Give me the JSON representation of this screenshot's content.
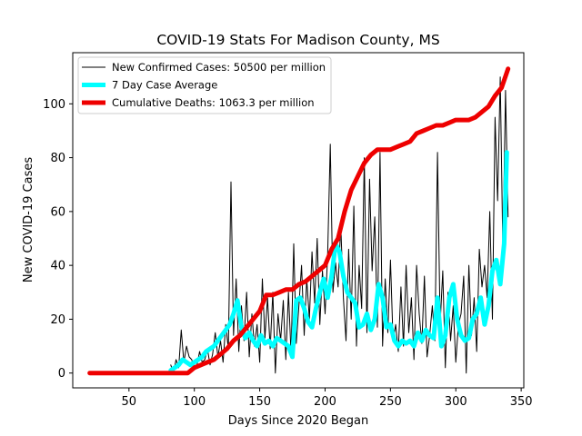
{
  "chart_data": {
    "type": "line",
    "title": "COVID-19 Stats For Madison County, MS",
    "xlabel": "Days Since 2020 Began",
    "ylabel": "New COVID-19 Cases",
    "xlim": [
      7,
      352
    ],
    "ylim": [
      -5.5,
      119
    ],
    "xticks": [
      50,
      100,
      150,
      200,
      250,
      300,
      350
    ],
    "yticks": [
      0,
      20,
      40,
      60,
      80,
      100
    ],
    "grid": false,
    "legend_position": "top-left",
    "series": [
      {
        "name": "New Confirmed Cases: 50500 per million",
        "color": "#000000",
        "x": [
          82,
          84,
          86,
          88,
          90,
          92,
          94,
          96,
          98,
          100,
          102,
          104,
          106,
          108,
          110,
          112,
          114,
          116,
          118,
          120,
          122,
          124,
          126,
          128,
          130,
          132,
          134,
          136,
          138,
          140,
          142,
          144,
          146,
          148,
          150,
          152,
          154,
          156,
          158,
          160,
          162,
          164,
          166,
          168,
          170,
          172,
          174,
          176,
          178,
          180,
          182,
          184,
          186,
          188,
          190,
          192,
          194,
          196,
          198,
          200,
          202,
          204,
          206,
          208,
          210,
          212,
          214,
          216,
          218,
          220,
          222,
          224,
          226,
          228,
          230,
          232,
          234,
          236,
          238,
          240,
          242,
          244,
          246,
          248,
          250,
          252,
          254,
          256,
          258,
          260,
          262,
          264,
          266,
          268,
          270,
          272,
          274,
          276,
          278,
          280,
          282,
          284,
          286,
          288,
          290,
          292,
          294,
          296,
          298,
          300,
          302,
          304,
          306,
          308,
          310,
          312,
          314,
          316,
          318,
          320,
          322,
          324,
          326,
          328,
          330,
          332,
          334,
          336,
          338,
          340
        ],
        "values": [
          3,
          0,
          5,
          2,
          16,
          4,
          10,
          6,
          5,
          2,
          3,
          8,
          4,
          5,
          9,
          3,
          7,
          15,
          6,
          12,
          4,
          18,
          9,
          71,
          14,
          35,
          8,
          25,
          12,
          30,
          6,
          22,
          10,
          18,
          4,
          35,
          13,
          28,
          9,
          30,
          0,
          22,
          12,
          27,
          5,
          30,
          7,
          48,
          11,
          25,
          40,
          14,
          35,
          20,
          45,
          26,
          50,
          18,
          38,
          22,
          44,
          85,
          30,
          41,
          32,
          55,
          28,
          12,
          46,
          20,
          62,
          10,
          40,
          24,
          80,
          15,
          72,
          38,
          58,
          17,
          82,
          10,
          35,
          15,
          42,
          12,
          18,
          8,
          32,
          10,
          40,
          15,
          28,
          5,
          40,
          22,
          11,
          36,
          6,
          14,
          25,
          12,
          82,
          18,
          38,
          2,
          30,
          12,
          25,
          4,
          18,
          22,
          36,
          0,
          40,
          14,
          28,
          8,
          46,
          32,
          40,
          28,
          60,
          20,
          95,
          64,
          110,
          45,
          105,
          58
        ]
      },
      {
        "name": "7 Day Case Average",
        "color": "#00ffff",
        "x": [
          82,
          85,
          88,
          91,
          94,
          97,
          100,
          103,
          106,
          109,
          112,
          115,
          118,
          121,
          124,
          127,
          130,
          133,
          136,
          139,
          142,
          145,
          148,
          151,
          154,
          157,
          160,
          163,
          166,
          169,
          172,
          175,
          178,
          181,
          184,
          187,
          190,
          193,
          196,
          199,
          202,
          205,
          208,
          211,
          214,
          217,
          220,
          223,
          226,
          229,
          232,
          235,
          238,
          241,
          244,
          247,
          250,
          253,
          256,
          259,
          262,
          265,
          268,
          271,
          274,
          277,
          280,
          283,
          286,
          289,
          292,
          295,
          298,
          301,
          304,
          307,
          310,
          313,
          316,
          319,
          322,
          325,
          328,
          331,
          334,
          337,
          339
        ],
        "values": [
          1,
          2,
          3,
          5,
          4,
          3,
          4,
          5,
          6,
          8,
          9,
          10,
          12,
          14,
          16,
          18,
          22,
          27,
          17,
          13,
          15,
          12,
          10,
          14,
          11,
          12,
          10,
          13,
          12,
          11,
          10,
          6,
          27,
          28,
          24,
          19,
          17,
          24,
          30,
          35,
          28,
          36,
          48,
          45,
          36,
          30,
          28,
          26,
          17,
          18,
          22,
          16,
          20,
          33,
          28,
          17,
          18,
          12,
          10,
          12,
          11,
          12,
          10,
          15,
          12,
          16,
          14,
          13,
          28,
          10,
          14,
          28,
          33,
          20,
          14,
          12,
          13,
          20,
          22,
          28,
          18,
          25,
          38,
          42,
          33,
          48,
          82
        ]
      },
      {
        "name": "Cumulative Deaths: 1063.3 per million",
        "color": "#ee0000",
        "x": [
          20,
          40,
          60,
          80,
          95,
          100,
          105,
          110,
          115,
          120,
          125,
          130,
          135,
          140,
          145,
          150,
          155,
          160,
          165,
          170,
          175,
          180,
          185,
          190,
          195,
          200,
          205,
          210,
          215,
          220,
          225,
          230,
          235,
          240,
          245,
          250,
          255,
          260,
          265,
          270,
          275,
          280,
          285,
          290,
          295,
          300,
          305,
          310,
          315,
          320,
          325,
          330,
          335,
          340
        ],
        "values": [
          0,
          0,
          0,
          0,
          0,
          2,
          3,
          4,
          5,
          7,
          9,
          12,
          14,
          17,
          20,
          23,
          29,
          29,
          30,
          31,
          31,
          33,
          34,
          36,
          38,
          40,
          46,
          50,
          60,
          68,
          73,
          78,
          81,
          83,
          83,
          83,
          84,
          85,
          86,
          89,
          90,
          91,
          92,
          92,
          93,
          94,
          94,
          94,
          95,
          97,
          99,
          103,
          106,
          113
        ]
      }
    ]
  }
}
